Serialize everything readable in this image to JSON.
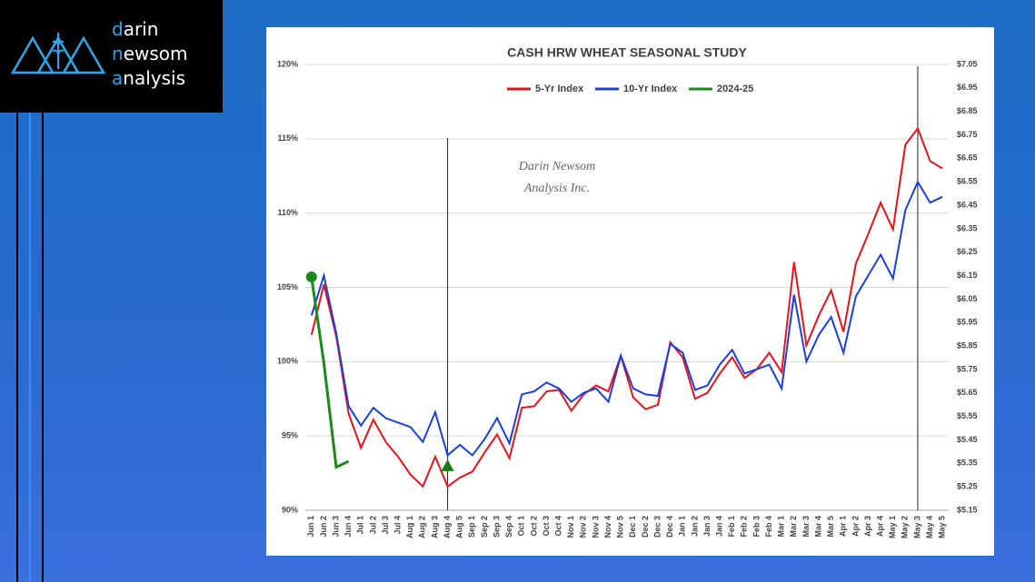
{
  "logo": {
    "lines": [
      "darin",
      "newsom",
      "analysis"
    ]
  },
  "chart_data": {
    "type": "line",
    "title": "CASH HRW WHEAT SEASONAL STUDY",
    "annotations": [
      "Darin Newsom",
      "Analysis Inc."
    ],
    "categories": [
      "Jun 1",
      "Jun 2",
      "Jun 3",
      "Jun 4",
      "Jul 1",
      "Jul 2",
      "Jul 3",
      "Jul 4",
      "Aug 1",
      "Aug 2",
      "Aug 3",
      "Aug 4",
      "Aug 5",
      "Sep 1",
      "Sep 2",
      "Sep 3",
      "Sep 4",
      "Oct 1",
      "Oct 2",
      "Oct 3",
      "Oct 4",
      "Nov 1",
      "Nov 2",
      "Nov 3",
      "Nov 4",
      "Nov 5",
      "Dec 1",
      "Dec 2",
      "Dec 3",
      "Dec 4",
      "Jan 1",
      "Jan 2",
      "Jan 3",
      "Jan 4",
      "Feb 1",
      "Feb 2",
      "Feb 3",
      "Feb 4",
      "Mar 1",
      "Mar 2",
      "Mar 3",
      "Mar 4",
      "Mar 5",
      "Apr 1",
      "Apr 2",
      "Apr 3",
      "Apr 4",
      "May 1",
      "May 2",
      "May 3",
      "May 4",
      "May 5"
    ],
    "series": [
      {
        "name": "5-Yr Index",
        "color": "#e8121b",
        "values": [
          101.8,
          105.2,
          101.7,
          96.5,
          94.2,
          96.1,
          94.6,
          93.6,
          92.4,
          91.6,
          93.6,
          91.6,
          92.2,
          92.6,
          93.9,
          95.1,
          93.5,
          96.9,
          97.0,
          98.0,
          98.1,
          96.7,
          97.8,
          98.4,
          98.0,
          100.4,
          97.6,
          96.8,
          97.1,
          101.3,
          100.3,
          97.5,
          97.9,
          99.2,
          100.3,
          98.9,
          99.5,
          100.6,
          99.3,
          106.7,
          101.1,
          103.1,
          104.8,
          102.0,
          106.6,
          108.6,
          110.7,
          108.9,
          114.6,
          115.7,
          113.5,
          113.0
        ]
      },
      {
        "name": "10-Yr Index",
        "color": "#1a3fe0",
        "values": [
          103.1,
          105.8,
          101.9,
          97.0,
          95.7,
          96.9,
          96.2,
          95.9,
          95.6,
          94.6,
          96.6,
          93.7,
          94.4,
          93.7,
          94.8,
          96.2,
          94.5,
          97.8,
          98.0,
          98.6,
          98.2,
          97.3,
          97.9,
          98.2,
          97.3,
          100.4,
          98.2,
          97.8,
          97.7,
          101.2,
          100.6,
          98.1,
          98.4,
          99.8,
          100.8,
          99.2,
          99.5,
          99.8,
          98.2,
          104.5,
          100.0,
          101.8,
          103.0,
          100.6,
          104.4,
          105.8,
          107.2,
          105.6,
          110.2,
          112.1,
          110.7,
          111.1
        ]
      },
      {
        "name": "2024-25",
        "color": "#1a8a1a",
        "first_marker": "circle",
        "values": [
          105.7,
          99.9,
          92.9,
          93.3,
          null,
          null,
          null,
          null,
          null,
          null,
          null,
          null,
          null,
          null,
          null,
          null,
          null,
          null,
          null,
          null,
          null,
          null,
          null,
          null,
          null,
          null,
          null,
          null,
          null,
          null,
          null,
          null,
          null,
          null,
          null,
          null,
          null,
          null,
          null,
          null,
          null,
          null,
          null,
          null,
          null,
          null,
          null,
          null,
          null,
          null,
          null,
          null
        ]
      }
    ],
    "current_marker": {
      "category_index": 11,
      "value": 93.0,
      "shape": "triangle",
      "color": "#1a7a1a"
    },
    "vlines": [
      11,
      49
    ],
    "ylim": [
      90,
      120
    ],
    "yticks": [
      {
        "value": 90,
        "label": "90%"
      },
      {
        "value": 95,
        "label": "95%"
      },
      {
        "value": 100,
        "label": "100%"
      },
      {
        "value": 105,
        "label": "105%"
      },
      {
        "value": 110,
        "label": "110%"
      },
      {
        "value": 115,
        "label": "115%"
      },
      {
        "value": 120,
        "label": "120%"
      }
    ],
    "y2lim": [
      5.15,
      7.05
    ],
    "y2ticks": [
      {
        "value": 5.15,
        "label": "$5.15"
      },
      {
        "value": 5.25,
        "label": "$5.25"
      },
      {
        "value": 5.35,
        "label": "$5.35"
      },
      {
        "value": 5.45,
        "label": "$5.45"
      },
      {
        "value": 5.55,
        "label": "$5.55"
      },
      {
        "value": 5.65,
        "label": "$5.65"
      },
      {
        "value": 5.75,
        "label": "$5.75"
      },
      {
        "value": 5.85,
        "label": "$5.85"
      },
      {
        "value": 5.95,
        "label": "$5.95"
      },
      {
        "value": 6.05,
        "label": "$6.05"
      },
      {
        "value": 6.15,
        "label": "$6.15"
      },
      {
        "value": 6.25,
        "label": "$6.25"
      },
      {
        "value": 6.35,
        "label": "$6.35"
      },
      {
        "value": 6.45,
        "label": "$6.45"
      },
      {
        "value": 6.55,
        "label": "$6.55"
      },
      {
        "value": 6.65,
        "label": "$6.65"
      },
      {
        "value": 6.75,
        "label": "$6.75"
      },
      {
        "value": 6.85,
        "label": "$6.85"
      },
      {
        "value": 6.95,
        "label": "$6.95"
      },
      {
        "value": 7.05,
        "label": "$7.05"
      }
    ],
    "grid": true,
    "legend": "top"
  }
}
